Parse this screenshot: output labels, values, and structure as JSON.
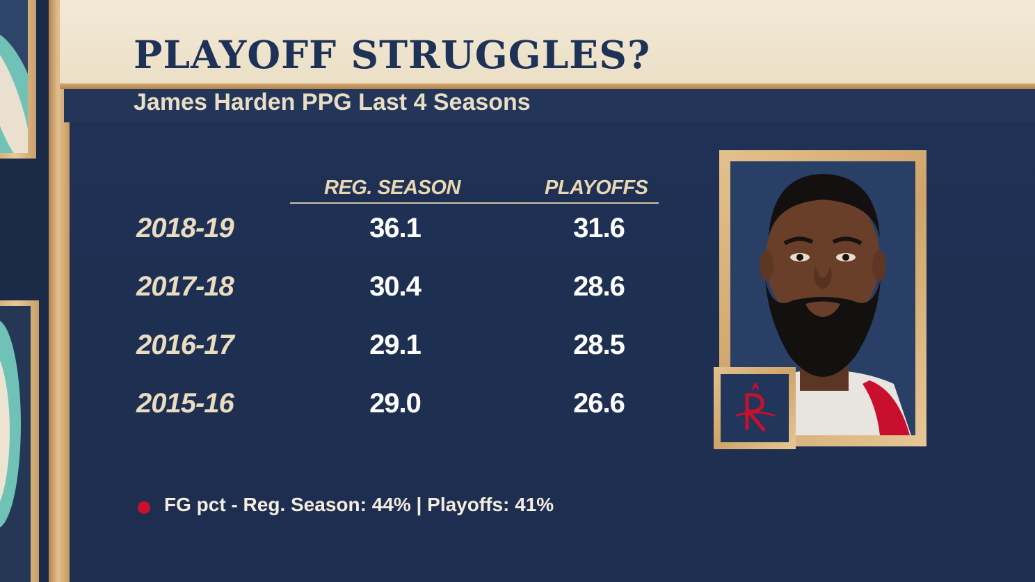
{
  "header": {
    "title": "PLAYOFF STRUGGLES?",
    "subtitle": "James Harden PPG Last 4 Seasons"
  },
  "chart_data": {
    "type": "table",
    "title": "PLAYOFF STRUGGLES?",
    "subtitle": "James Harden PPG Last 4 Seasons",
    "columns": [
      "REG. SEASON",
      "PLAYOFFS"
    ],
    "rows": [
      {
        "season": "2018-19",
        "reg_season": "36.1",
        "playoffs": "31.6"
      },
      {
        "season": "2017-18",
        "reg_season": "30.4",
        "playoffs": "28.6"
      },
      {
        "season": "2016-17",
        "reg_season": "29.1",
        "playoffs": "28.5"
      },
      {
        "season": "2015-16",
        "reg_season": "29.0",
        "playoffs": "26.6"
      }
    ],
    "footnote": "FG pct - Reg. Season: 44% | Playoffs: 41%"
  },
  "colors": {
    "navy": "#1e3156",
    "cream": "#f3e9d6",
    "wood": "#d6b27e",
    "accent_red": "#c8102e"
  },
  "icons": {
    "player_photo": "player-headshot",
    "team_logo": "rockets-logo-icon"
  }
}
